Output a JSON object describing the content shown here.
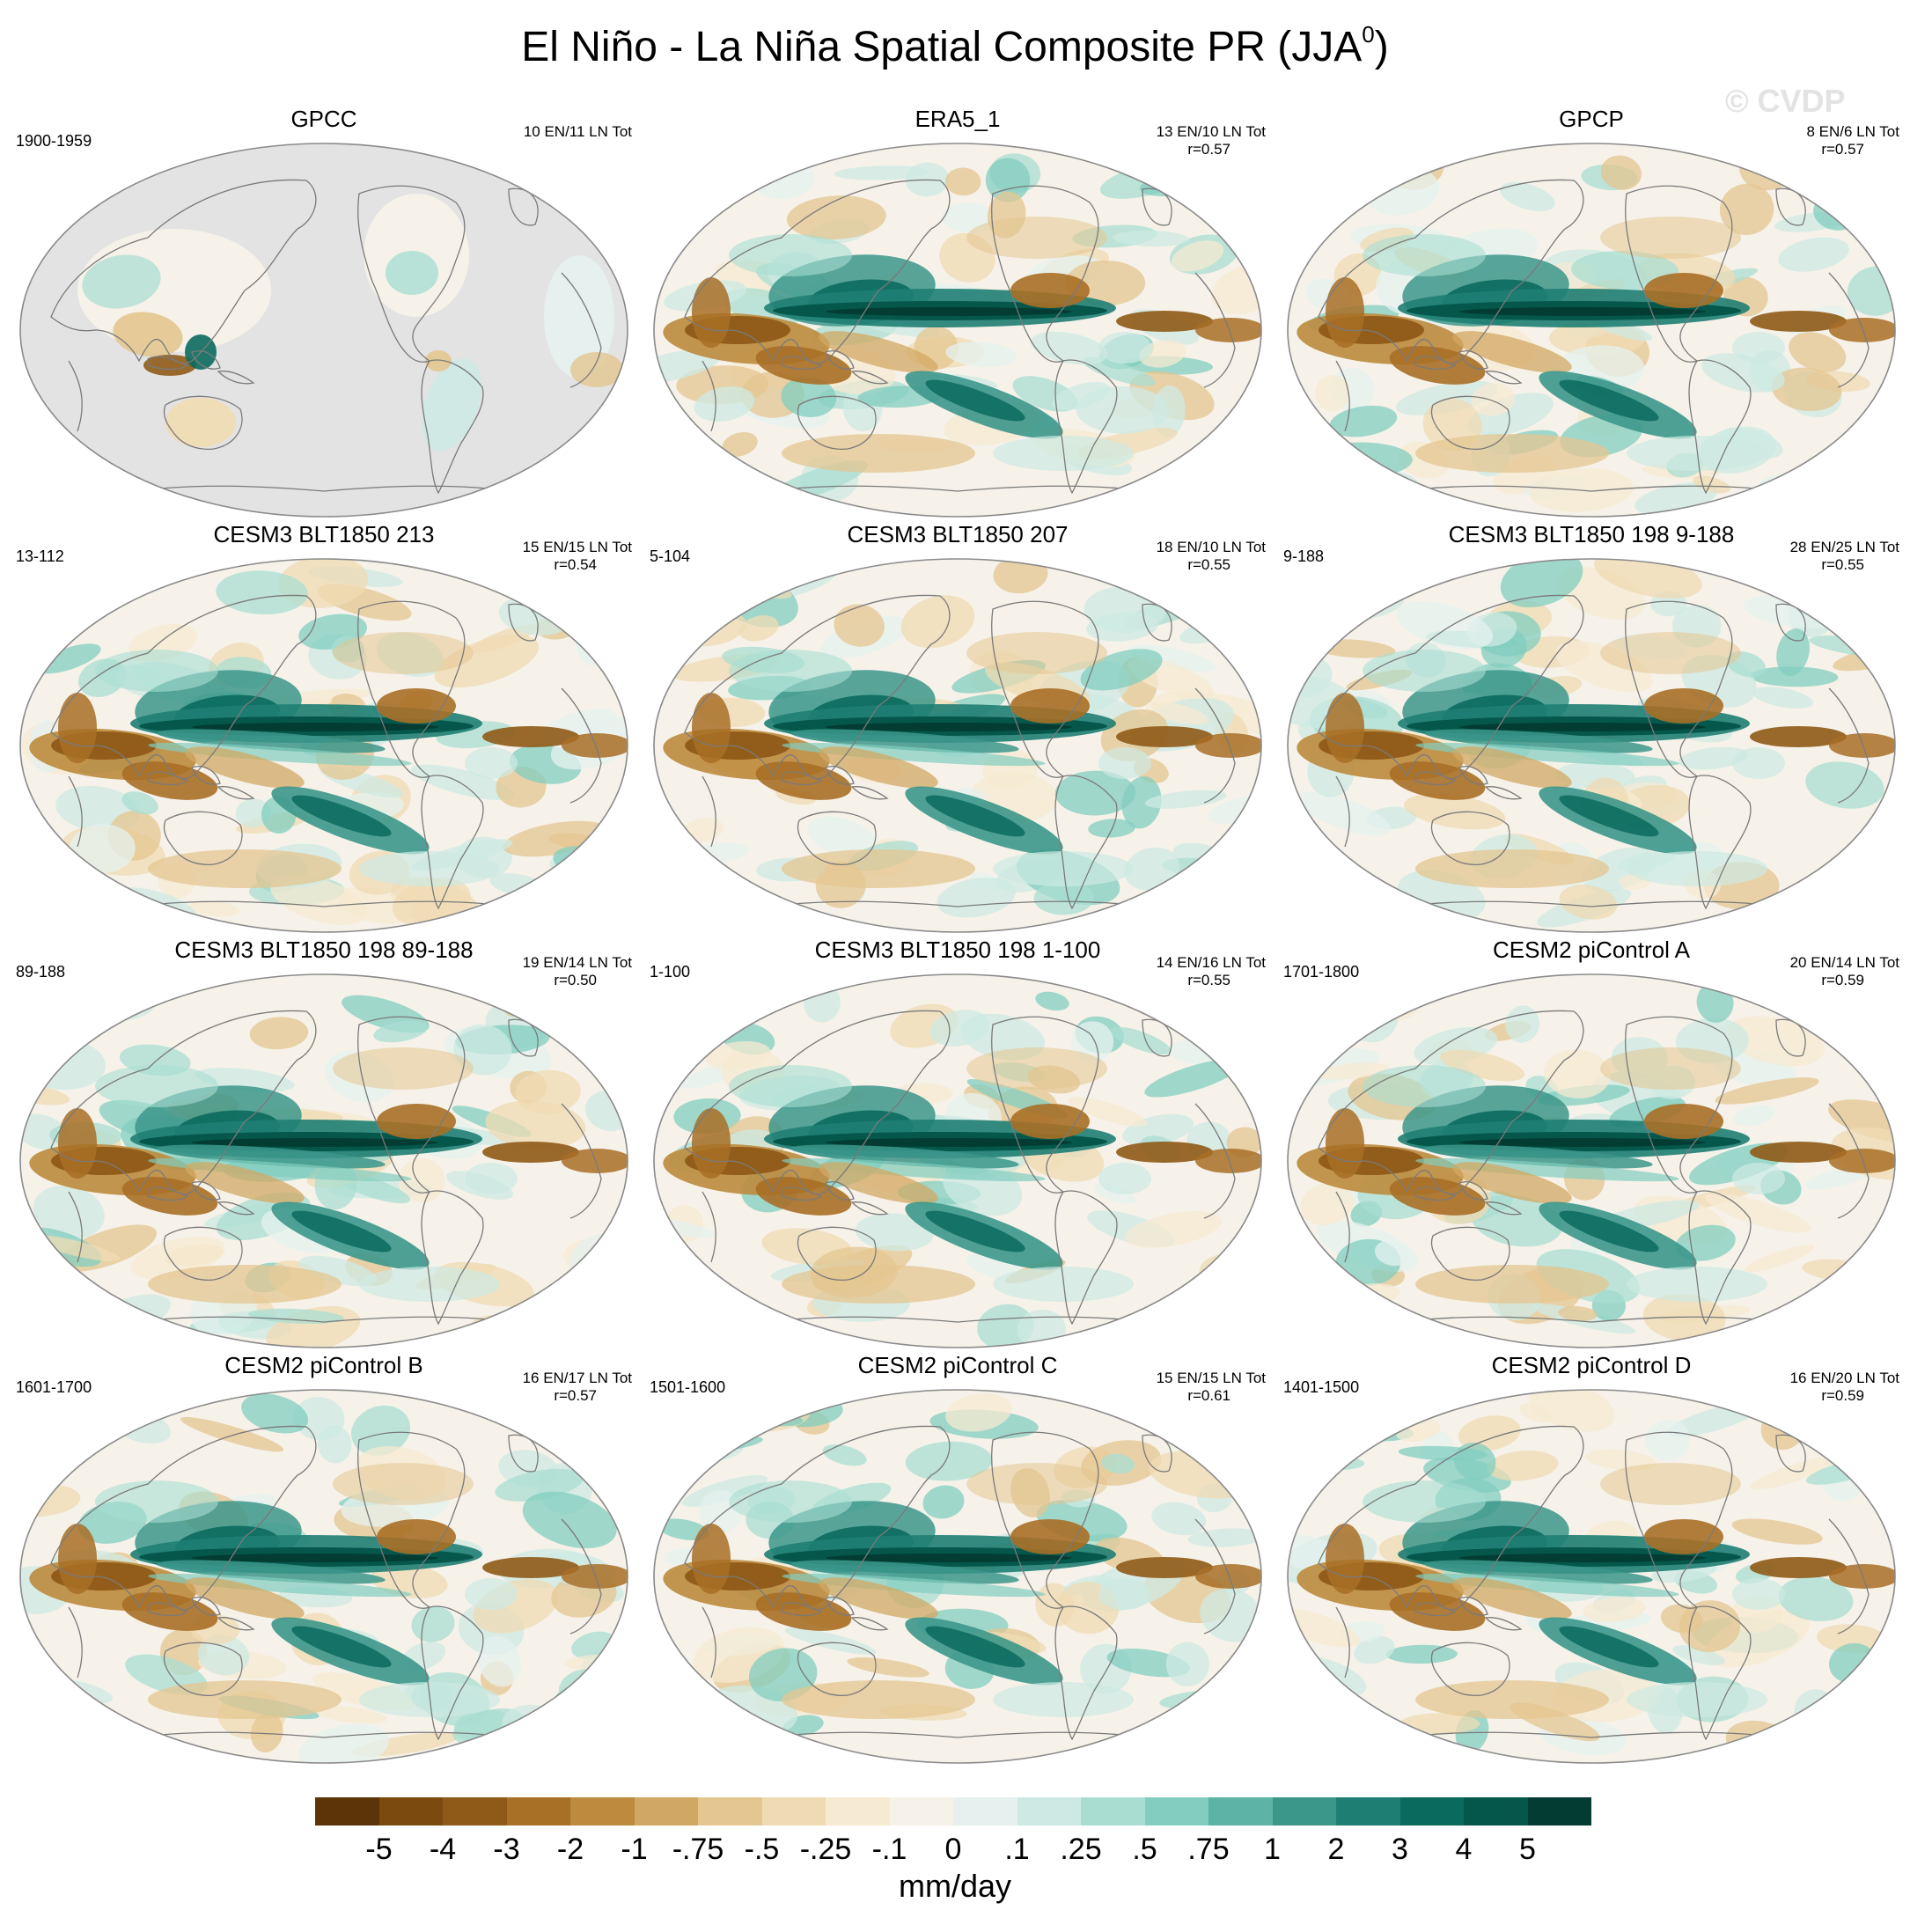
{
  "figure": {
    "title_main": "El Niño - La Niña Spatial Composite PR (JJA",
    "title_sup": "0",
    "title_close": ")",
    "watermark": "© CVDP"
  },
  "colors": {
    "ocean_missing": "#e3e3e3",
    "coastline": "#7a7a7a",
    "frame": "#8a8a8a"
  },
  "panels": [
    {
      "title": "GPCC",
      "period": "1900-1959",
      "counts": "10 EN/11 LN Tot",
      "corr": "",
      "style": "obs_land"
    },
    {
      "title": "ERA5_1",
      "period": "",
      "counts": "13 EN/10 LN Tot",
      "corr": "r=0.57",
      "style": "obs"
    },
    {
      "title": "GPCP",
      "period": "",
      "counts": "8 EN/6 LN Tot",
      "corr": "r=0.57",
      "style": "obs"
    },
    {
      "title": "CESM3 BLT1850 213",
      "period": "13-112",
      "counts": "15 EN/15 LN Tot",
      "corr": "r=0.54",
      "style": "model"
    },
    {
      "title": "CESM3 BLT1850 207",
      "period": "5-104",
      "counts": "18 EN/10 LN Tot",
      "corr": "r=0.55",
      "style": "model"
    },
    {
      "title": "CESM3 BLT1850 198 9-188",
      "period": "9-188",
      "counts": "28 EN/25 LN Tot",
      "corr": "r=0.55",
      "style": "model"
    },
    {
      "title": "CESM3 BLT1850 198 89-188",
      "period": "89-188",
      "counts": "19 EN/14 LN Tot",
      "corr": "r=0.50",
      "style": "model"
    },
    {
      "title": "CESM3 BLT1850 198 1-100",
      "period": "1-100",
      "counts": "14 EN/16 LN Tot",
      "corr": "r=0.55",
      "style": "model"
    },
    {
      "title": "CESM2 piControl A",
      "period": "1701-1800",
      "counts": "20 EN/14 LN Tot",
      "corr": "r=0.59",
      "style": "model"
    },
    {
      "title": "CESM2 piControl B",
      "period": "1601-1700",
      "counts": "16 EN/17 LN Tot",
      "corr": "r=0.57",
      "style": "model"
    },
    {
      "title": "CESM2 piControl C",
      "period": "1501-1600",
      "counts": "15 EN/15 LN Tot",
      "corr": "r=0.61",
      "style": "model"
    },
    {
      "title": "CESM2 piControl D",
      "period": "1401-1500",
      "counts": "16 EN/20 LN Tot",
      "corr": "r=0.59",
      "style": "model"
    }
  ],
  "colorbar": {
    "colors": [
      "#5c3408",
      "#7a4a0e",
      "#8f5a17",
      "#a86f26",
      "#bd8b3d",
      "#d1a863",
      "#e4c690",
      "#efdbb3",
      "#f6ead2",
      "#f6f2ea",
      "#e6f1ef",
      "#cde9e3",
      "#a9ddd2",
      "#82cdbf",
      "#5db3a5",
      "#3c978b",
      "#1f7e73",
      "#0b6a5e",
      "#05574c",
      "#023c33"
    ],
    "ticks": [
      "-5",
      "-4",
      "-3",
      "-2",
      "-1",
      "-.75",
      "-.5",
      "-.25",
      "-.1",
      "0",
      ".1",
      ".25",
      ".5",
      ".75",
      "1",
      "2",
      "3",
      "4",
      "5"
    ],
    "units": "mm/day"
  }
}
